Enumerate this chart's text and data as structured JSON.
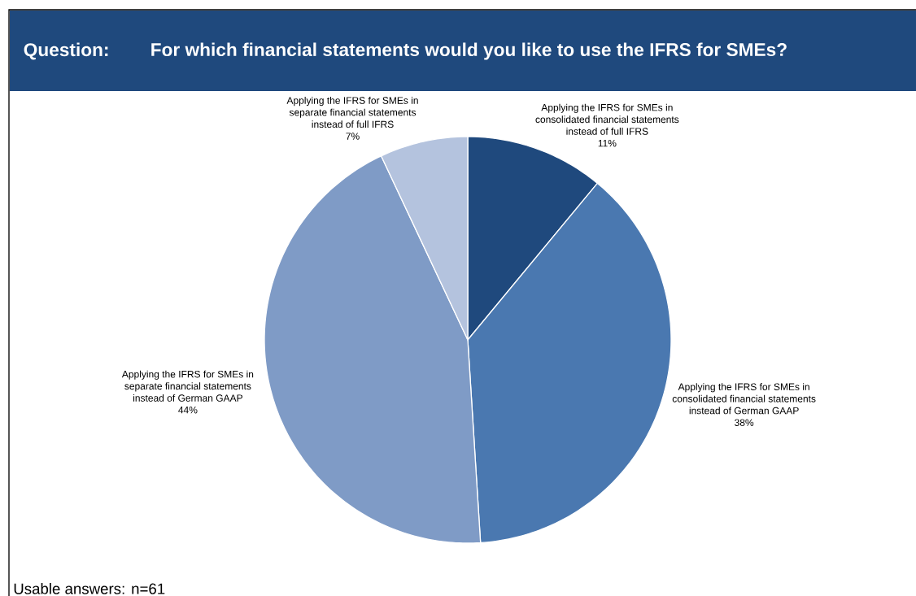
{
  "chart_data": {
    "type": "pie",
    "title": "Question:",
    "subtitle": "For which financial statements would you like to use the IFRS for SMEs?",
    "categories": [
      "Applying the IFRS for SMEs in consolidated financial statements instead of full IFRS",
      "Applying the IFRS for SMEs in consolidated financial statements instead of German GAAP",
      "Applying the IFRS for SMEs in separate financial statements instead of German GAAP",
      "Applying the IFRS for SMEs in separate financial statements instead of full IFRS"
    ],
    "values": [
      11,
      38,
      44,
      7
    ],
    "value_labels": [
      "11%",
      "38%",
      "44%",
      "7%"
    ],
    "colors": [
      "#1f497d",
      "#4a78b0",
      "#7f9bc6",
      "#b4c3de"
    ],
    "annotations": [
      "Usable answers: n=61"
    ]
  }
}
